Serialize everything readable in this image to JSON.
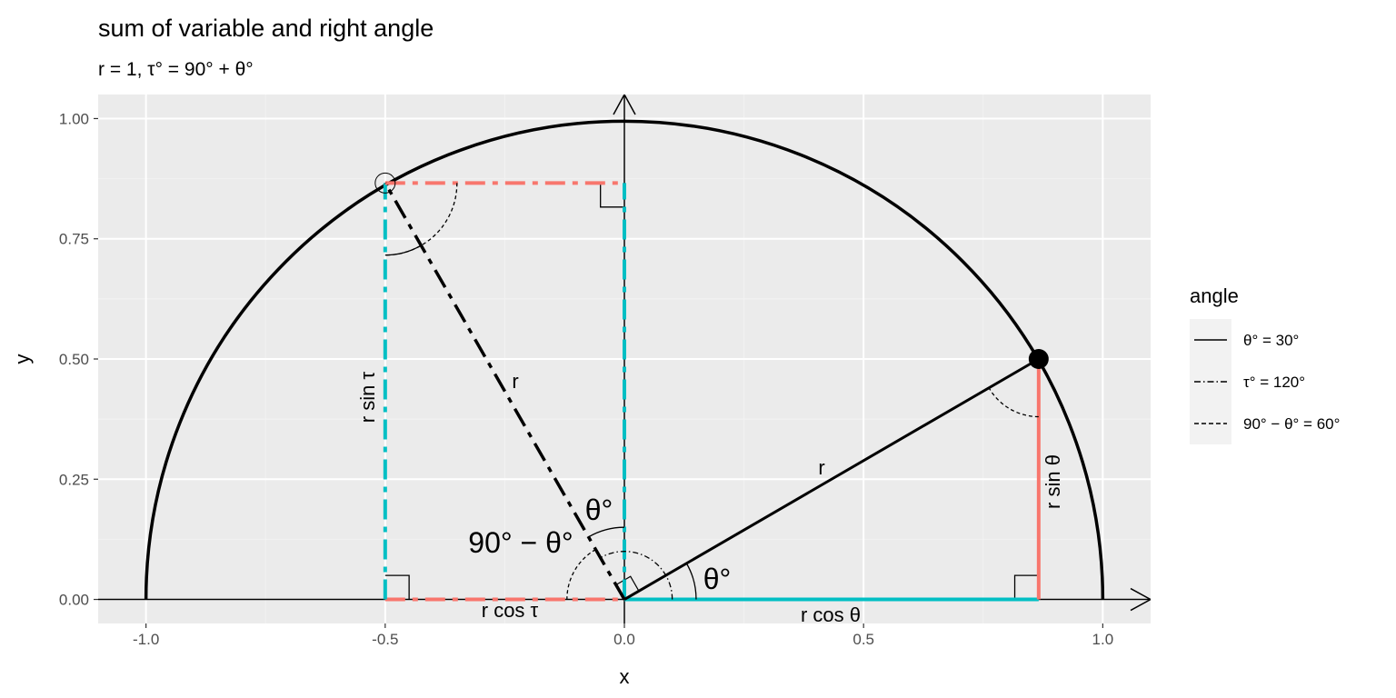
{
  "title": "sum of variable and right angle",
  "subtitle": "r = 1, τ° = 90° + θ°",
  "colors": {
    "panel": "#ebebeb",
    "grid_major": "#ffffff",
    "grid_minor": "#f2f2f2",
    "red": "#f8766d",
    "cyan": "#00bfc4",
    "black": "#000000",
    "legend_key": "#f2f2f2"
  },
  "chart_data": {
    "type": "line",
    "title": "sum of variable and right angle",
    "subtitle": "r = 1, τ° = 90° + θ°",
    "xlabel": "x",
    "ylabel": "y",
    "xlim": [
      -1.1,
      1.1
    ],
    "ylim": [
      -0.05,
      1.05
    ],
    "x_ticks": [
      -1.0,
      -0.5,
      0.0,
      0.5,
      1.0
    ],
    "x_tick_labels": [
      "-1.0",
      "-0.5",
      "0.0",
      "0.5",
      "1.0"
    ],
    "y_ticks": [
      0.0,
      0.25,
      0.5,
      0.75,
      1.0
    ],
    "y_tick_labels": [
      "0.00",
      "0.25",
      "0.50",
      "0.75",
      "1.00"
    ],
    "grid": true,
    "radius": 1,
    "theta_deg": 30,
    "tau_deg": 120,
    "points": [
      {
        "x": 0.866,
        "y": 0.5,
        "style": "filled"
      },
      {
        "x": -0.5,
        "y": 0.866,
        "style": "open"
      }
    ],
    "legend": {
      "title": "angle",
      "position": "right",
      "entries": [
        {
          "label": "θ° = 30°",
          "linetype": "solid"
        },
        {
          "label": "τ° = 120°",
          "linetype": "dotdash"
        },
        {
          "label": "90° − θ° = 60°",
          "linetype": "dashed"
        }
      ]
    },
    "annotations": {
      "r_theta": "r",
      "r_tau": "r",
      "r_cos_theta": "r cos θ",
      "r_sin_theta": "r sin θ",
      "r_cos_tau": "r cos τ",
      "r_sin_tau": "r sin τ",
      "theta_at_origin": "θ°",
      "theta_upper": "θ°",
      "complement": "90° − θ°"
    }
  }
}
